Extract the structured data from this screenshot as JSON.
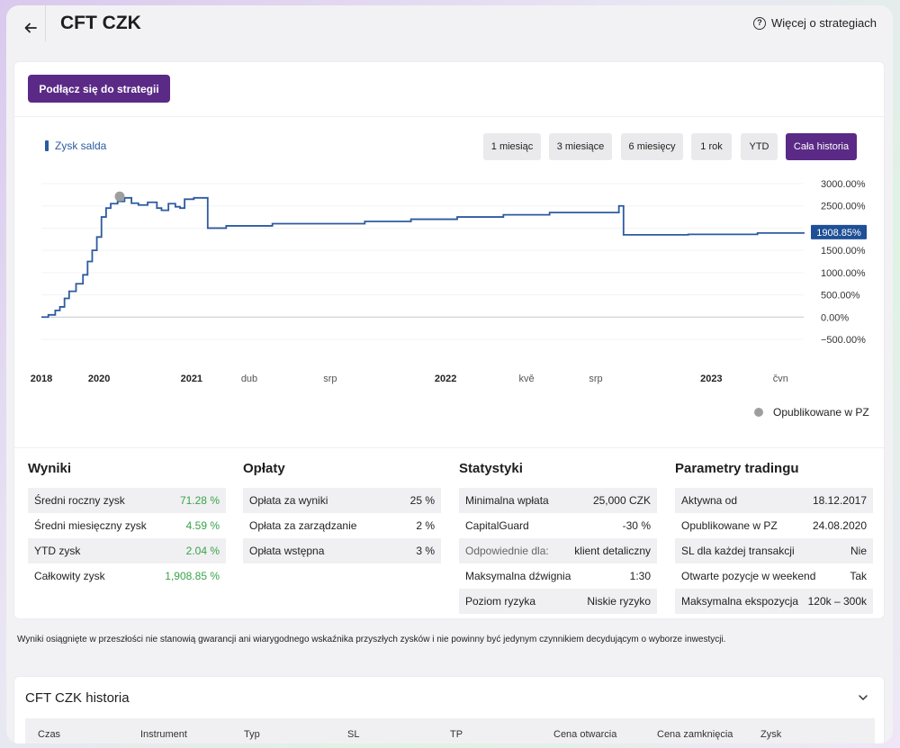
{
  "header": {
    "title": "CFT CZK",
    "more_link": "Więcej o strategiach"
  },
  "connect_button": "Podłącz się do strategii",
  "chart_legend": "Zysk salda",
  "ranges": [
    "1 miesiąc",
    "3 miesiące",
    "6 miesięcy",
    "1 rok",
    "YTD",
    "Cała historia"
  ],
  "active_range": "Cała historia",
  "colors": {
    "accent": "#5a2a86",
    "series": "#2d5aa0",
    "positive": "#3aa34a",
    "marker": "#9e9e9e"
  },
  "chart_data": {
    "type": "line",
    "title": "",
    "series": [
      {
        "name": "Zysk salda",
        "points": [
          [
            0,
            0
          ],
          [
            0.03,
            50
          ],
          [
            0.06,
            150
          ],
          [
            0.08,
            230
          ],
          [
            0.1,
            420
          ],
          [
            0.12,
            580
          ],
          [
            0.15,
            750
          ],
          [
            0.18,
            950
          ],
          [
            0.2,
            1250
          ],
          [
            0.22,
            1500
          ],
          [
            0.24,
            1800
          ],
          [
            0.26,
            2250
          ],
          [
            0.28,
            2450
          ],
          [
            0.3,
            2550
          ],
          [
            0.33,
            2600
          ],
          [
            0.36,
            2680
          ],
          [
            0.39,
            2560
          ],
          [
            0.42,
            2520
          ],
          [
            0.46,
            2580
          ],
          [
            0.5,
            2450
          ],
          [
            0.52,
            2400
          ],
          [
            0.55,
            2550
          ],
          [
            0.58,
            2480
          ],
          [
            0.6,
            2450
          ],
          [
            0.62,
            2650
          ],
          [
            0.66,
            2680
          ],
          [
            0.7,
            2680
          ],
          [
            0.72,
            2000
          ],
          [
            0.8,
            2050
          ],
          [
            1.0,
            2100
          ],
          [
            1.2,
            2100
          ],
          [
            1.4,
            2150
          ],
          [
            1.6,
            2200
          ],
          [
            1.8,
            2250
          ],
          [
            2.0,
            2300
          ],
          [
            2.2,
            2350
          ],
          [
            2.5,
            2500
          ],
          [
            2.52,
            1850
          ],
          [
            2.8,
            1860
          ],
          [
            3.1,
            1890
          ],
          [
            3.3,
            1908.85
          ]
        ]
      }
    ],
    "y_ticks": [
      "3000.00%",
      "2500.00%",
      "2000.00%",
      "1500.00%",
      "1000.00%",
      "500.00%",
      "0.00%",
      "−500.00%"
    ],
    "ylim": [
      -500,
      3000
    ],
    "x_ticks": [
      {
        "label": "2018",
        "major": true
      },
      {
        "label": "2020",
        "major": true
      },
      {
        "label": "2021",
        "major": true
      },
      {
        "label": "dub",
        "major": false
      },
      {
        "label": "srp",
        "major": false
      },
      {
        "label": "2022",
        "major": true
      },
      {
        "label": "kvě",
        "major": false
      },
      {
        "label": "srp",
        "major": false
      },
      {
        "label": "2023",
        "major": true
      },
      {
        "label": "čvn",
        "major": false
      }
    ],
    "x_tick_values": [
      0,
      0.25,
      0.65,
      0.9,
      1.25,
      1.75,
      2.1,
      2.4,
      2.9,
      3.2
    ],
    "xlim": [
      0,
      3.3
    ],
    "current_value_label": "1908.85%",
    "marker_point": [
      0.3,
      2550
    ],
    "grid": true,
    "legend": "top-left"
  },
  "published_legend": "Opublikowane w PZ",
  "results": {
    "title": "Wyniki",
    "rows": [
      {
        "label": "Średni roczny zysk",
        "value": "71.28 %"
      },
      {
        "label": "Średni miesięczny zysk",
        "value": "4.59 %"
      },
      {
        "label": "YTD zysk",
        "value": "2.04 %"
      },
      {
        "label": "Całkowity zysk",
        "value": "1,908.85 %"
      }
    ]
  },
  "fees": {
    "title": "Opłaty",
    "rows": [
      {
        "label": "Opłata za wyniki",
        "value": "25 %"
      },
      {
        "label": "Opłata za zarządzanie",
        "value": "2 %"
      },
      {
        "label": "Opłata wstępna",
        "value": "3 %"
      }
    ]
  },
  "stats": {
    "title": "Statystyki",
    "rows": [
      {
        "label": "Minimalna wpłata",
        "value": "25,000 CZK"
      },
      {
        "label": "CapitalGuard",
        "value": "-30 %"
      },
      {
        "label": "Odpowiednie dla:",
        "value": "klient detaliczny"
      },
      {
        "label": "Maksymalna dźwignia",
        "value": "1:30"
      },
      {
        "label": "Poziom ryzyka",
        "value": "Niskie ryzyko"
      }
    ]
  },
  "params": {
    "title": "Parametry tradingu",
    "rows": [
      {
        "label": "Aktywna od",
        "value": "18.12.2017"
      },
      {
        "label": "Opublikowane w PZ",
        "value": "24.08.2020"
      },
      {
        "label": "SL dla każdej transakcji",
        "value": "Nie"
      },
      {
        "label": "Otwarte pozycje w weekend",
        "value": "Tak"
      },
      {
        "label": "Maksymalna ekspozycja",
        "value": "120k – 300k"
      }
    ]
  },
  "disclaimer": "Wyniki osiągnięte w przeszłości nie stanowią gwarancji ani wiarygodnego wskaźnika przyszłych zysków i nie powinny być jedynym czynnikiem decydującym o wyborze inwestycji.",
  "history": {
    "title": "CFT CZK historia",
    "columns": [
      "Czas",
      "Instrument",
      "Typ",
      "SL",
      "TP",
      "Cena otwarcia",
      "Cena zamknięcia",
      "Zysk"
    ]
  }
}
